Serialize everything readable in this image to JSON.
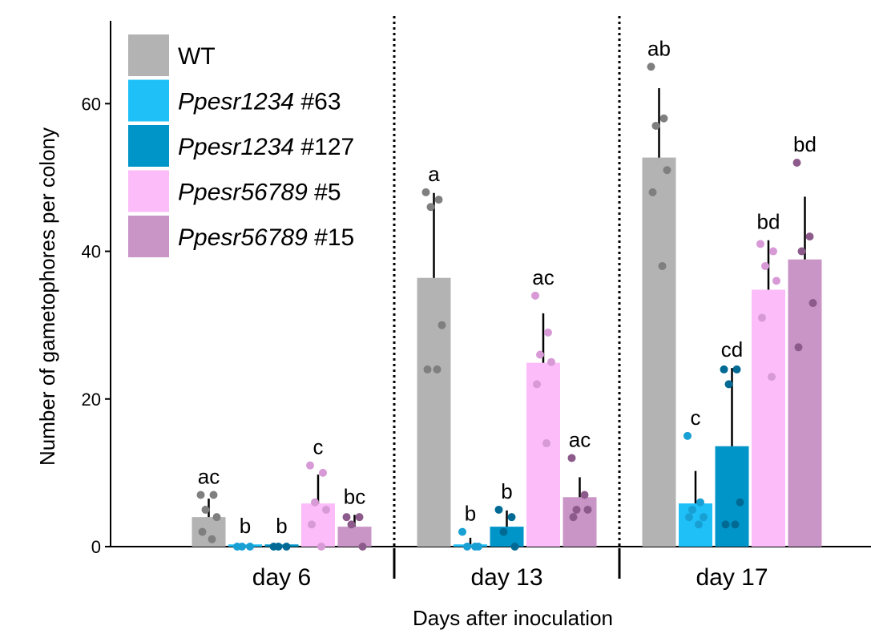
{
  "chart_data": {
    "type": "bar",
    "x_label": "Days after inoculation",
    "y_label": "Number of gametophores per colony",
    "categories": [
      "day 6",
      "day 13",
      "day 17"
    ],
    "ylim": [
      0,
      71
    ],
    "yticks": [
      0,
      20,
      40,
      60
    ],
    "series": [
      {
        "name": "WT",
        "color": "#b3b3b3",
        "point_color": "#7f7f7f",
        "values": [
          4.0,
          36.4,
          52.7
        ],
        "errors": [
          2.5,
          11.5,
          9.4
        ],
        "letters": [
          "ac",
          "a",
          "ab"
        ],
        "points": [
          [
            7,
            7,
            5,
            4,
            2,
            1
          ],
          [
            48,
            47,
            46,
            30,
            24,
            24
          ],
          [
            65,
            58,
            57,
            51,
            48,
            38
          ]
        ]
      },
      {
        "name": "Ppesr1234 #63",
        "color": "#1ec0f7",
        "point_color": "#189fd4",
        "values": [
          0.3,
          0.3,
          5.85
        ],
        "errors": [
          0,
          0.9,
          4.4
        ],
        "letters": [
          "b",
          "b",
          "c"
        ],
        "points": [
          [
            0,
            0,
            0
          ],
          [
            2,
            0,
            0,
            0
          ],
          [
            15,
            6,
            5,
            4,
            4,
            3
          ]
        ]
      },
      {
        "name": "Ppesr1234 #127",
        "color": "#0095c8",
        "point_color": "#006a94",
        "values": [
          0.3,
          2.7,
          13.6
        ],
        "errors": [
          0,
          2.2,
          10.6
        ],
        "letters": [
          "b",
          "b",
          "cd"
        ],
        "points": [
          [
            0,
            0,
            0
          ],
          [
            5,
            4,
            2,
            0
          ],
          [
            24,
            24,
            22,
            6,
            3,
            3
          ]
        ]
      },
      {
        "name": "Ppesr56789 #5",
        "color": "#fcbcf9",
        "point_color": "#d79ad6",
        "values": [
          5.85,
          24.9,
          34.8
        ],
        "errors": [
          3.9,
          6.7,
          6.7
        ],
        "letters": [
          "c",
          "ac",
          "bd"
        ],
        "points": [
          [
            11,
            10,
            6,
            5,
            3,
            0
          ],
          [
            34,
            29,
            26,
            25,
            22,
            14
          ],
          [
            41,
            40,
            38,
            36,
            31,
            23
          ]
        ]
      },
      {
        "name": "Ppesr56789 #15",
        "color": "#c995c7",
        "point_color": "#8c5b8b",
        "values": [
          2.7,
          6.7,
          38.9
        ],
        "errors": [
          1.6,
          2.7,
          8.5
        ],
        "letters": [
          "bc",
          "ac",
          "bd"
        ],
        "points": [
          [
            4,
            4,
            3,
            0
          ],
          [
            12,
            7,
            5,
            5,
            4
          ],
          [
            52,
            42,
            40,
            33,
            27
          ]
        ]
      }
    ]
  }
}
